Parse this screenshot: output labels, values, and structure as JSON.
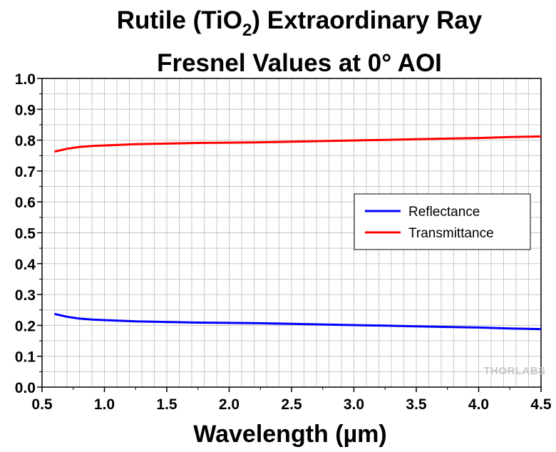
{
  "chart_data": {
    "type": "line",
    "title_line1": {
      "before": "Rutile (TiO",
      "subscript": "2",
      "after": ") Extraordinary Ray"
    },
    "title_line2": "Fresnel Values at 0° AOI",
    "xlabel": "Wavelength (µm)",
    "ylabel": "",
    "xlim": [
      0.5,
      4.5
    ],
    "ylim": [
      0.0,
      1.0
    ],
    "xticks": [
      "0.5",
      "1.0",
      "1.5",
      "2.0",
      "2.5",
      "3.0",
      "3.5",
      "4.0",
      "4.5"
    ],
    "yticks": [
      "0.0",
      "0.1",
      "0.2",
      "0.3",
      "0.4",
      "0.5",
      "0.6",
      "0.7",
      "0.8",
      "0.9",
      "1.0"
    ],
    "grid": true,
    "legend_position": "right-middle",
    "series": [
      {
        "name": "Reflectance",
        "color": "#0000ff",
        "x": [
          0.6,
          0.7,
          0.8,
          0.9,
          1.0,
          1.25,
          1.5,
          1.75,
          2.0,
          2.25,
          2.5,
          2.75,
          3.0,
          3.25,
          3.5,
          3.75,
          4.0,
          4.25,
          4.5
        ],
        "y": [
          0.237,
          0.228,
          0.222,
          0.219,
          0.217,
          0.213,
          0.211,
          0.209,
          0.208,
          0.207,
          0.205,
          0.203,
          0.201,
          0.199,
          0.197,
          0.195,
          0.193,
          0.19,
          0.188
        ]
      },
      {
        "name": "Transmittance",
        "color": "#ff0000",
        "x": [
          0.6,
          0.7,
          0.8,
          0.9,
          1.0,
          1.25,
          1.5,
          1.75,
          2.0,
          2.25,
          2.5,
          2.75,
          3.0,
          3.25,
          3.5,
          3.75,
          4.0,
          4.25,
          4.5
        ],
        "y": [
          0.763,
          0.772,
          0.778,
          0.781,
          0.783,
          0.787,
          0.789,
          0.791,
          0.792,
          0.793,
          0.795,
          0.797,
          0.799,
          0.801,
          0.803,
          0.805,
          0.807,
          0.81,
          0.812
        ]
      }
    ],
    "watermark": "THORLABS"
  }
}
